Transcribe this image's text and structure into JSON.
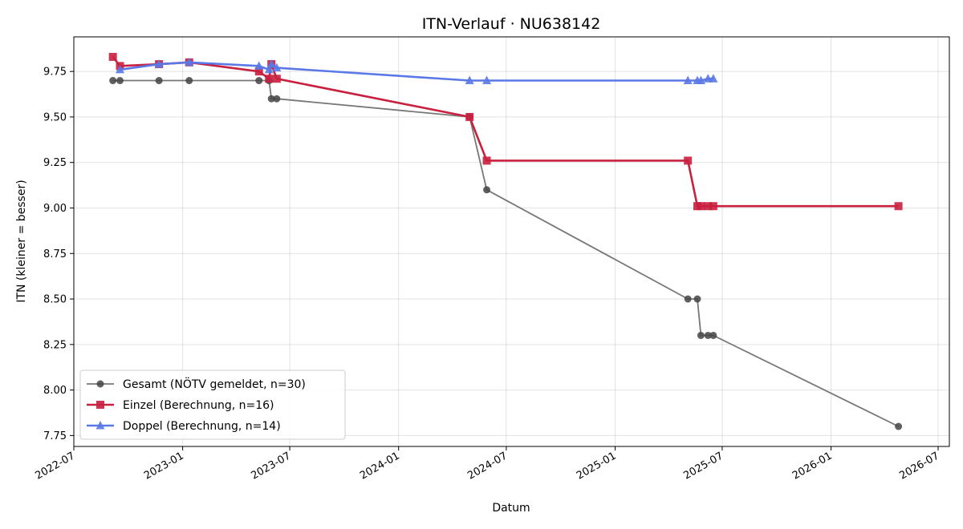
{
  "chart_data": {
    "type": "line",
    "title": "ITN-Verlauf · NU638142",
    "xlabel": "Datum",
    "ylabel": "ITN  (kleiner = besser)",
    "x_axis": "date",
    "xlim": [
      "2022-07-01",
      "2026-07-20"
    ],
    "ylim": [
      7.69,
      9.94
    ],
    "yticks": [
      7.75,
      8.0,
      8.25,
      8.5,
      8.75,
      9.0,
      9.25,
      9.5,
      9.75
    ],
    "ytick_labels": [
      "7.75",
      "8.00",
      "8.25",
      "8.50",
      "8.75",
      "9.00",
      "9.25",
      "9.50",
      "9.75"
    ],
    "xticks": [
      "2022-07-01",
      "2023-01-01",
      "2023-07-01",
      "2024-01-01",
      "2024-07-01",
      "2025-01-01",
      "2025-07-01",
      "2026-01-01",
      "2026-07-01"
    ],
    "xtick_labels": [
      "2022-07",
      "2023-01",
      "2023-07",
      "2024-01",
      "2024-07",
      "2025-01",
      "2025-07",
      "2026-01",
      "2026-07"
    ],
    "grid": true,
    "legend_position": "lower-left",
    "series": [
      {
        "name": "Gesamt (NÖTV gemeldet, n=30)",
        "color": "#777777",
        "marker": "circle",
        "marker_color": "#444444",
        "points": [
          [
            "2022-09-05",
            9.7
          ],
          [
            "2022-09-17",
            9.7
          ],
          [
            "2022-11-22",
            9.7
          ],
          [
            "2023-01-12",
            9.7
          ],
          [
            "2023-05-10",
            9.7
          ],
          [
            "2023-05-27",
            9.7
          ],
          [
            "2023-05-31",
            9.6
          ],
          [
            "2023-06-09",
            9.6
          ],
          [
            "2024-04-30",
            9.5
          ],
          [
            "2024-05-29",
            9.1
          ],
          [
            "2025-05-04",
            8.5
          ],
          [
            "2025-05-20",
            8.5
          ],
          [
            "2025-05-26",
            8.3
          ],
          [
            "2025-06-07",
            8.3
          ],
          [
            "2025-06-16",
            8.3
          ],
          [
            "2026-04-25",
            7.8
          ]
        ]
      },
      {
        "name": "Einzel (Berechnung, n=16)",
        "color": "#c8203f",
        "marker": "square",
        "marker_color": "#c8203f",
        "points": [
          [
            "2022-09-05",
            9.83
          ],
          [
            "2022-09-17",
            9.78
          ],
          [
            "2022-11-22",
            9.79
          ],
          [
            "2023-01-12",
            9.8
          ],
          [
            "2023-05-10",
            9.75
          ],
          [
            "2023-05-27",
            9.71
          ],
          [
            "2023-05-31",
            9.79
          ],
          [
            "2023-06-09",
            9.71
          ],
          [
            "2024-04-30",
            9.5
          ],
          [
            "2024-05-29",
            9.26
          ],
          [
            "2025-05-04",
            9.26
          ],
          [
            "2025-05-20",
            9.01
          ],
          [
            "2025-05-26",
            9.01
          ],
          [
            "2025-06-07",
            9.01
          ],
          [
            "2025-06-16",
            9.01
          ],
          [
            "2026-04-25",
            9.01
          ]
        ]
      },
      {
        "name": "Doppel (Berechnung, n=14)",
        "color": "#5a78e6",
        "marker": "triangle",
        "marker_color": "#5a78e6",
        "points": [
          [
            "2022-09-17",
            9.76
          ],
          [
            "2022-11-22",
            9.79
          ],
          [
            "2023-01-12",
            9.8
          ],
          [
            "2023-05-10",
            9.78
          ],
          [
            "2023-05-27",
            9.76
          ],
          [
            "2023-05-31",
            9.79
          ],
          [
            "2023-06-09",
            9.77
          ],
          [
            "2024-04-30",
            9.7
          ],
          [
            "2024-05-29",
            9.7
          ],
          [
            "2025-05-04",
            9.7
          ],
          [
            "2025-05-20",
            9.7
          ],
          [
            "2025-05-26",
            9.7
          ],
          [
            "2025-06-07",
            9.71
          ],
          [
            "2025-06-16",
            9.71
          ]
        ]
      }
    ]
  }
}
